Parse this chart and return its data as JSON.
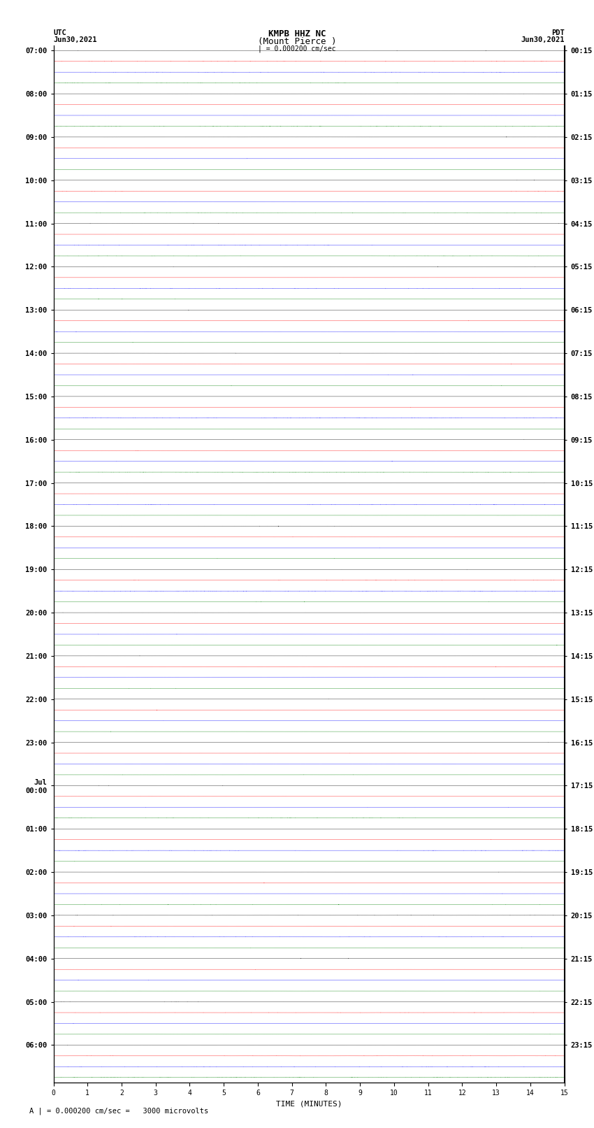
{
  "title_line1": "KMPB HHZ NC",
  "title_line2": "(Mount Pierce )",
  "scale_label": "| = 0.000200 cm/sec",
  "footer_label": "A | = 0.000200 cm/sec =   3000 microvolts",
  "left_header": "UTC\nJun30,2021",
  "right_header": "PDT\nJun30,2021",
  "xlabel": "TIME (MINUTES)",
  "utc_labels": [
    "07:00",
    "08:00",
    "09:00",
    "10:00",
    "11:00",
    "12:00",
    "13:00",
    "14:00",
    "15:00",
    "16:00",
    "17:00",
    "18:00",
    "19:00",
    "20:00",
    "21:00",
    "22:00",
    "23:00",
    "Jul\n00:00",
    "01:00",
    "02:00",
    "03:00",
    "04:00",
    "05:00",
    "06:00"
  ],
  "pdt_labels": [
    "00:15",
    "01:15",
    "02:15",
    "03:15",
    "04:15",
    "05:15",
    "06:15",
    "07:15",
    "08:15",
    "09:15",
    "10:15",
    "11:15",
    "12:15",
    "13:15",
    "14:15",
    "15:15",
    "16:15",
    "17:15",
    "18:15",
    "19:15",
    "20:15",
    "21:15",
    "22:15",
    "23:15"
  ],
  "trace_colors": [
    "black",
    "red",
    "blue",
    "green"
  ],
  "n_hours": 24,
  "traces_per_hour": 4,
  "minutes": 15,
  "sample_rate": 100,
  "background_color": "white",
  "figsize": [
    8.5,
    16.13
  ],
  "dpi": 100
}
